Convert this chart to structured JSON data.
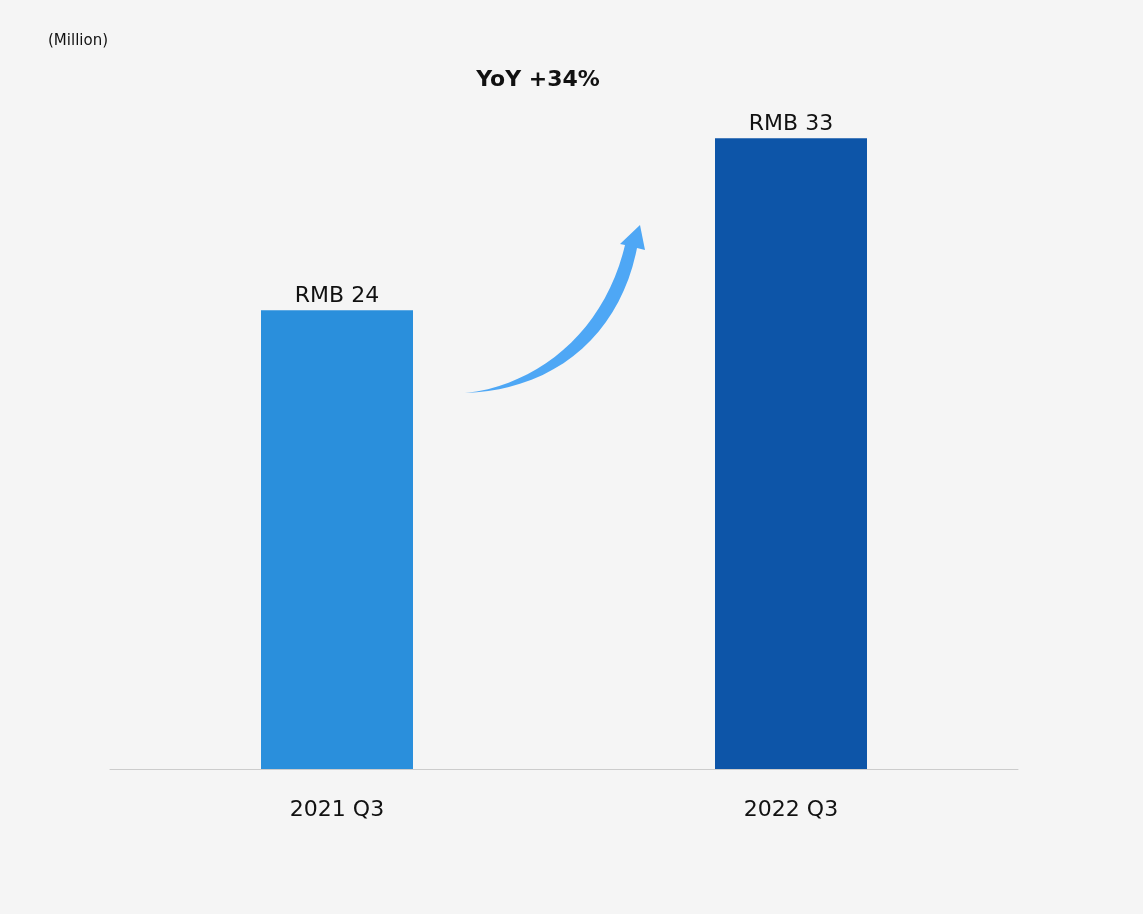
{
  "chart_data": {
    "type": "bar",
    "title": "YoY +34%",
    "annotations": [
      "(Million)"
    ],
    "categories": [
      "2021 Q3",
      "2022 Q3"
    ],
    "values": [
      24,
      33
    ],
    "value_labels": [
      "RMB 24",
      "RMB 33"
    ],
    "colors": [
      "#2a8fdc",
      "#0d55a8"
    ],
    "tick_labels": "x"
  }
}
